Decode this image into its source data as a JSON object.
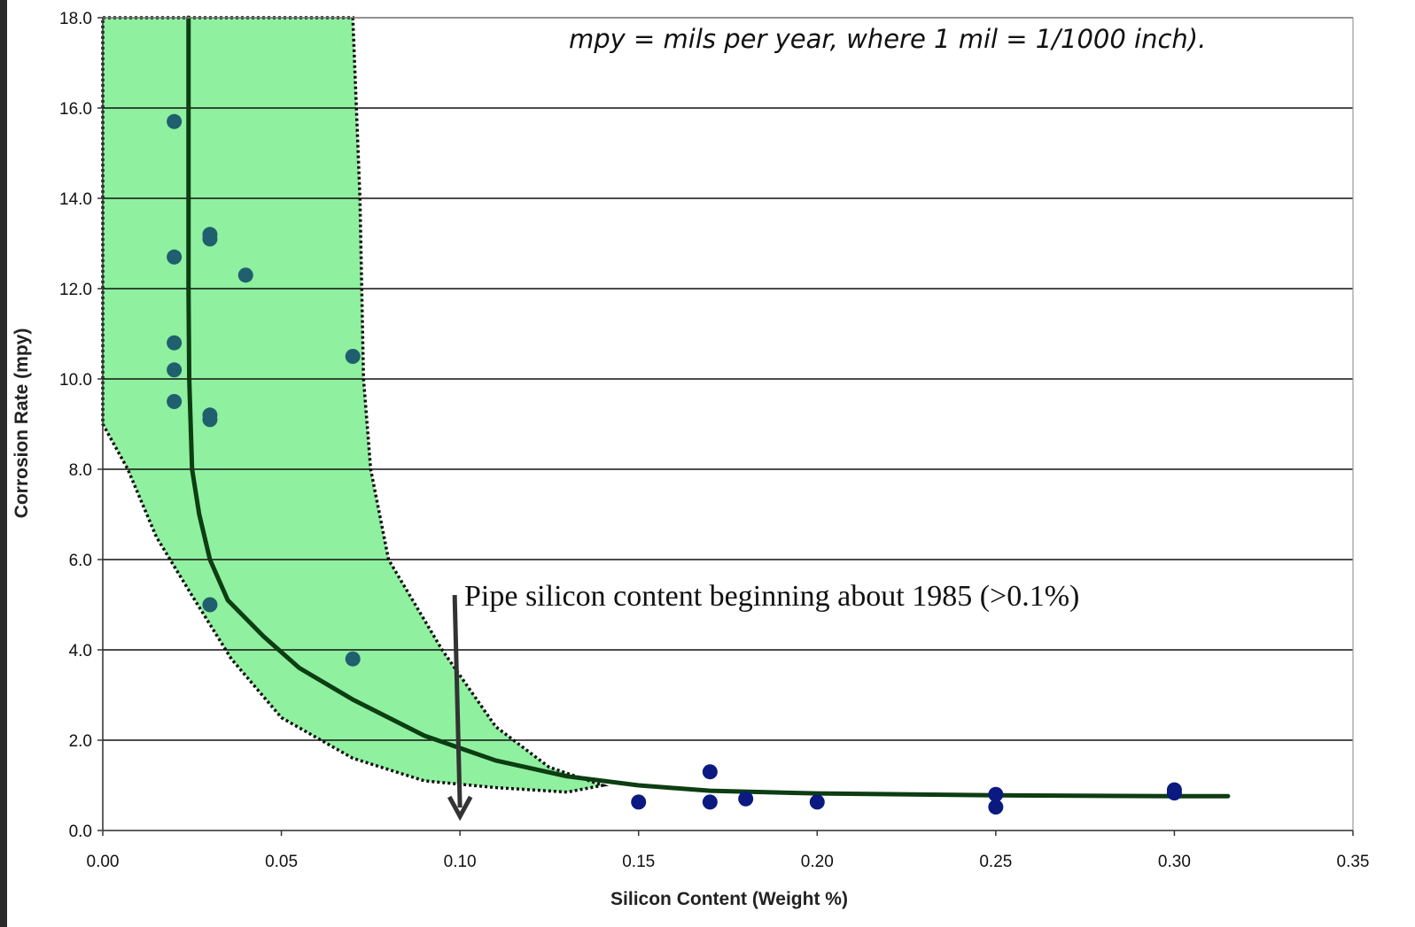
{
  "chart_data": {
    "type": "scatter",
    "title": "",
    "note": "mpy = mils per year, where 1 mil = 1/1000 inch).",
    "xlabel": "Silicon Content (Weight %)",
    "ylabel": "Corrosion Rate (mpy)",
    "xlim": [
      0.0,
      0.35
    ],
    "ylim": [
      0.0,
      18.0
    ],
    "xticks": [
      "0.00",
      "0.05",
      "0.10",
      "0.15",
      "0.20",
      "0.25",
      "0.30",
      "0.35"
    ],
    "yticks": [
      "0.0",
      "2.0",
      "4.0",
      "6.0",
      "8.0",
      "10.0",
      "12.0",
      "14.0",
      "16.0",
      "18.0"
    ],
    "grid": "horizontal",
    "annotation": {
      "text": "Pipe silicon content beginning about 1985 (>0.1%)",
      "arrow_x": 0.1
    },
    "series": [
      {
        "marker_color": "#1f5f6e",
        "points": [
          [
            0.02,
            15.7
          ],
          [
            0.02,
            12.7
          ],
          [
            0.02,
            10.8
          ],
          [
            0.02,
            10.2
          ],
          [
            0.02,
            9.5
          ],
          [
            0.03,
            13.2
          ],
          [
            0.03,
            13.1
          ],
          [
            0.03,
            9.2
          ],
          [
            0.03,
            9.1
          ],
          [
            0.03,
            5.0
          ],
          [
            0.04,
            12.3
          ],
          [
            0.07,
            10.5
          ],
          [
            0.07,
            3.8
          ]
        ]
      },
      {
        "marker_color": "#0a1a80",
        "points": [
          [
            0.15,
            0.63
          ],
          [
            0.17,
            1.3
          ],
          [
            0.17,
            0.63
          ],
          [
            0.18,
            0.7
          ],
          [
            0.2,
            0.63
          ],
          [
            0.25,
            0.8
          ],
          [
            0.25,
            0.52
          ],
          [
            0.3,
            0.9
          ],
          [
            0.3,
            0.83
          ]
        ]
      }
    ],
    "trend_line": {
      "points": [
        [
          0.024,
          18.0
        ],
        [
          0.024,
          14.0
        ],
        [
          0.024,
          12.0
        ],
        [
          0.0242,
          10.0
        ],
        [
          0.025,
          8.0
        ],
        [
          0.027,
          7.0
        ],
        [
          0.03,
          6.0
        ],
        [
          0.035,
          5.1
        ],
        [
          0.045,
          4.3
        ],
        [
          0.055,
          3.6
        ],
        [
          0.07,
          2.9
        ],
        [
          0.09,
          2.1
        ],
        [
          0.11,
          1.55
        ],
        [
          0.13,
          1.2
        ],
        [
          0.15,
          1.0
        ],
        [
          0.17,
          0.88
        ],
        [
          0.2,
          0.82
        ],
        [
          0.25,
          0.78
        ],
        [
          0.3,
          0.76
        ],
        [
          0.315,
          0.76
        ]
      ],
      "color": "#0d3d12"
    },
    "band": {
      "fill": "#8ff0a0",
      "upper": [
        [
          0.0,
          18.0
        ],
        [
          0.07,
          18.0
        ],
        [
          0.072,
          14.0
        ],
        [
          0.073,
          10.0
        ],
        [
          0.075,
          8.0
        ],
        [
          0.08,
          6.0
        ],
        [
          0.095,
          4.0
        ],
        [
          0.11,
          2.3
        ],
        [
          0.125,
          1.4
        ],
        [
          0.14,
          1.0
        ]
      ],
      "lower": [
        [
          0.14,
          1.0
        ],
        [
          0.13,
          0.85
        ],
        [
          0.11,
          0.95
        ],
        [
          0.09,
          1.1
        ],
        [
          0.07,
          1.6
        ],
        [
          0.05,
          2.5
        ],
        [
          0.036,
          3.8
        ],
        [
          0.025,
          5.2
        ],
        [
          0.015,
          6.5
        ],
        [
          0.007,
          8.0
        ],
        [
          0.0,
          9.0
        ]
      ]
    }
  }
}
